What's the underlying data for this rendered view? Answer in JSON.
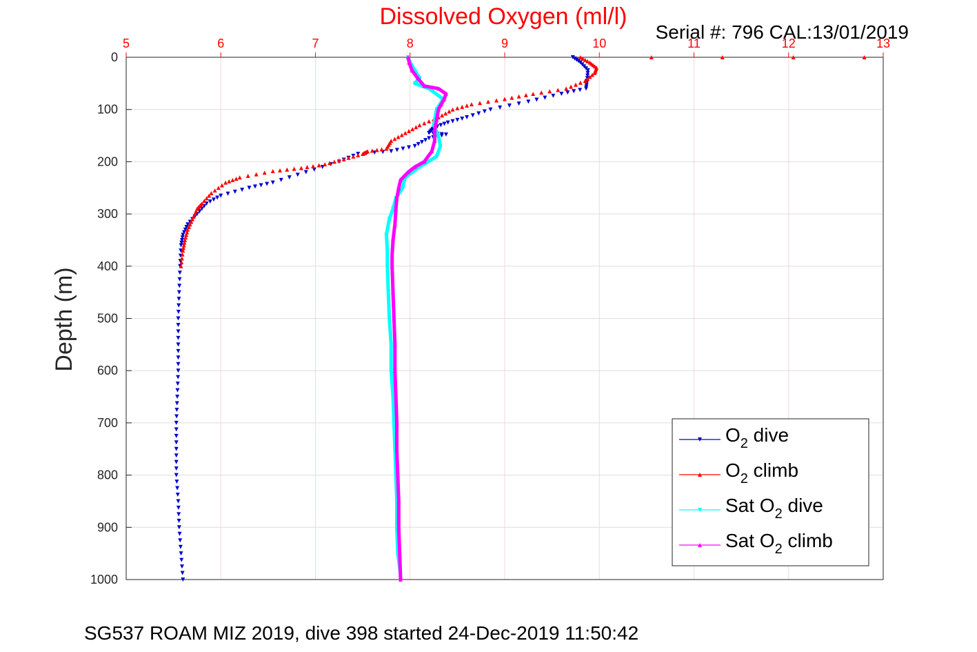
{
  "chart_data": {
    "type": "scatter",
    "title": "Dissolved Oxygen (ml/l)",
    "serial": "Serial #: 796  CAL:13/01/2019",
    "caption": "SG537 ROAM MIZ 2019, dive 398 started 24-Dec-2019 11:50:42",
    "xlabel": "Dissolved Oxygen (ml/l)",
    "ylabel": "Depth (m)",
    "xlim": [
      5,
      13
    ],
    "ylim": [
      0,
      1000
    ],
    "y_reversed": true,
    "x_axis_position": "top",
    "x_ticks": [
      "5",
      "6",
      "7",
      "8",
      "9",
      "10",
      "11",
      "12",
      "13"
    ],
    "y_ticks": [
      "0",
      "100",
      "200",
      "300",
      "400",
      "500",
      "600",
      "700",
      "800",
      "900",
      "1000"
    ],
    "grid": true,
    "legend_position": "lower-right",
    "colors": {
      "title": "#ff0000",
      "x_ticks": "#ff0000",
      "grid_x": "#f6d7d7",
      "grid_y": "#dddddd"
    },
    "legend": [
      {
        "pre": "O",
        "sub": "2",
        "post": " dive",
        "color": "#0000cc",
        "marker": "triangle-down"
      },
      {
        "pre": "O",
        "sub": "2",
        "post": " climb",
        "color": "#ff0000",
        "marker": "triangle-up"
      },
      {
        "pre": "Sat O",
        "sub": "2",
        "post": " dive",
        "color": "#00ffff",
        "marker": "triangle-down"
      },
      {
        "pre": "Sat O",
        "sub": "2",
        "post": " climb",
        "color": "#ff00ff",
        "marker": "triangle-up"
      }
    ],
    "series": [
      {
        "name": "O2 dive",
        "color": "#0000cc",
        "marker": "triangle-down",
        "points": [
          [
            9.72,
            0
          ],
          [
            9.8,
            10
          ],
          [
            9.88,
            25
          ],
          [
            9.87,
            45
          ],
          [
            9.86,
            60
          ],
          [
            9.6,
            70
          ],
          [
            9.25,
            85
          ],
          [
            8.85,
            100
          ],
          [
            8.6,
            115
          ],
          [
            8.4,
            125
          ],
          [
            8.25,
            135
          ],
          [
            8.2,
            145
          ],
          [
            8.38,
            148
          ],
          [
            8.2,
            155
          ],
          [
            8.05,
            170
          ],
          [
            7.8,
            180
          ],
          [
            7.45,
            185
          ],
          [
            7.25,
            200
          ],
          [
            6.9,
            220
          ],
          [
            6.55,
            240
          ],
          [
            6.3,
            250
          ],
          [
            6.0,
            265
          ],
          [
            5.85,
            280
          ],
          [
            5.75,
            300
          ],
          [
            5.65,
            320
          ],
          [
            5.6,
            340
          ],
          [
            5.58,
            360
          ],
          [
            5.57,
            400
          ],
          [
            5.56,
            450
          ],
          [
            5.55,
            500
          ],
          [
            5.55,
            550
          ],
          [
            5.55,
            600
          ],
          [
            5.54,
            650
          ],
          [
            5.53,
            700
          ],
          [
            5.53,
            750
          ],
          [
            5.53,
            800
          ],
          [
            5.55,
            850
          ],
          [
            5.56,
            900
          ],
          [
            5.58,
            950
          ],
          [
            5.6,
            1000
          ]
        ]
      },
      {
        "name": "O2 climb",
        "color": "#ff0000",
        "marker": "triangle-up",
        "points": [
          [
            12.8,
            0
          ],
          [
            9.8,
            0
          ],
          [
            9.9,
            10
          ],
          [
            9.97,
            20
          ],
          [
            9.95,
            30
          ],
          [
            9.85,
            45
          ],
          [
            9.65,
            60
          ],
          [
            9.3,
            70
          ],
          [
            9.0,
            80
          ],
          [
            8.65,
            90
          ],
          [
            8.45,
            100
          ],
          [
            8.3,
            115
          ],
          [
            8.1,
            130
          ],
          [
            7.95,
            145
          ],
          [
            7.8,
            160
          ],
          [
            7.75,
            175
          ],
          [
            7.55,
            180
          ],
          [
            7.5,
            185
          ],
          [
            7.3,
            195
          ],
          [
            7.1,
            205
          ],
          [
            6.85,
            212
          ],
          [
            6.55,
            218
          ],
          [
            6.2,
            230
          ],
          [
            6.05,
            240
          ],
          [
            5.9,
            260
          ],
          [
            5.8,
            280
          ],
          [
            5.75,
            290
          ],
          [
            5.7,
            310
          ],
          [
            5.65,
            330
          ],
          [
            5.62,
            350
          ],
          [
            5.6,
            370
          ],
          [
            5.58,
            400
          ]
        ]
      },
      {
        "name": "Sat O2 dive",
        "color": "#00ffff",
        "marker": "triangle-down",
        "points": [
          [
            7.98,
            0
          ],
          [
            8.0,
            10
          ],
          [
            8.05,
            25
          ],
          [
            8.1,
            40
          ],
          [
            8.05,
            50
          ],
          [
            8.2,
            60
          ],
          [
            8.35,
            80
          ],
          [
            8.28,
            100
          ],
          [
            8.25,
            130
          ],
          [
            8.3,
            150
          ],
          [
            8.32,
            170
          ],
          [
            8.28,
            190
          ],
          [
            8.1,
            210
          ],
          [
            7.95,
            230
          ],
          [
            7.92,
            250
          ],
          [
            7.85,
            270
          ],
          [
            7.82,
            290
          ],
          [
            7.78,
            310
          ],
          [
            7.75,
            340
          ],
          [
            7.76,
            370
          ],
          [
            7.76,
            400
          ],
          [
            7.77,
            450
          ],
          [
            7.78,
            500
          ],
          [
            7.8,
            550
          ],
          [
            7.8,
            600
          ],
          [
            7.82,
            650
          ],
          [
            7.83,
            700
          ],
          [
            7.84,
            750
          ],
          [
            7.85,
            800
          ],
          [
            7.86,
            850
          ],
          [
            7.86,
            900
          ],
          [
            7.87,
            950
          ],
          [
            7.9,
            990
          ]
        ]
      },
      {
        "name": "Sat O2 climb",
        "color": "#ff00ff",
        "marker": "triangle-up",
        "points": [
          [
            7.98,
            0
          ],
          [
            7.99,
            10
          ],
          [
            8.02,
            25
          ],
          [
            8.08,
            40
          ],
          [
            8.15,
            55
          ],
          [
            8.3,
            60
          ],
          [
            8.38,
            70
          ],
          [
            8.36,
            80
          ],
          [
            8.33,
            90
          ],
          [
            8.3,
            100
          ],
          [
            8.28,
            120
          ],
          [
            8.26,
            140
          ],
          [
            8.26,
            160
          ],
          [
            8.23,
            180
          ],
          [
            8.15,
            200
          ],
          [
            8.05,
            210
          ],
          [
            7.98,
            220
          ],
          [
            7.9,
            235
          ],
          [
            7.88,
            250
          ],
          [
            7.86,
            270
          ],
          [
            7.85,
            290
          ],
          [
            7.84,
            320
          ],
          [
            7.82,
            350
          ],
          [
            7.81,
            380
          ],
          [
            7.81,
            400
          ],
          [
            7.82,
            450
          ],
          [
            7.83,
            500
          ],
          [
            7.84,
            550
          ],
          [
            7.84,
            600
          ],
          [
            7.85,
            650
          ],
          [
            7.86,
            700
          ],
          [
            7.86,
            750
          ],
          [
            7.87,
            800
          ],
          [
            7.88,
            850
          ],
          [
            7.88,
            900
          ],
          [
            7.89,
            950
          ],
          [
            7.9,
            1000
          ]
        ]
      }
    ]
  }
}
